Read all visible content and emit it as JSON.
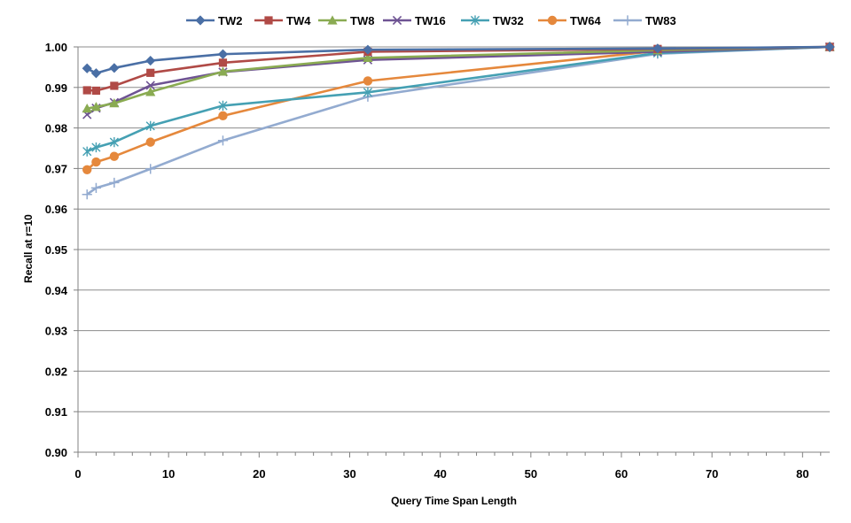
{
  "chart_data": {
    "type": "line",
    "title": "",
    "xlabel": "Query Time Span Length",
    "ylabel": "Recall at r=10",
    "xlim": [
      0,
      83
    ],
    "ylim": [
      0.9,
      1.0
    ],
    "x_ticks": [
      0,
      10,
      20,
      30,
      40,
      50,
      60,
      70,
      80
    ],
    "y_ticks": [
      0.9,
      0.91,
      0.92,
      0.93,
      0.94,
      0.95,
      0.96,
      0.97,
      0.98,
      0.99,
      1.0
    ],
    "y_tick_labels": [
      "0.90",
      "0.91",
      "0.92",
      "0.93",
      "0.94",
      "0.95",
      "0.96",
      "0.97",
      "0.98",
      "0.99",
      "1.00"
    ],
    "grid": "horizontal",
    "legend_position": "top",
    "x": [
      1,
      2,
      4,
      8,
      16,
      32,
      64,
      83
    ],
    "series": [
      {
        "name": "TW2",
        "color": "#4a6fa5",
        "marker": "diamond",
        "values": [
          0.9947,
          0.9935,
          0.9948,
          0.9966,
          0.9982,
          0.9993,
          0.9996,
          1.0
        ]
      },
      {
        "name": "TW4",
        "color": "#b04a46",
        "marker": "square",
        "values": [
          0.9893,
          0.9892,
          0.9904,
          0.9936,
          0.9961,
          0.9988,
          0.9995,
          1.0
        ]
      },
      {
        "name": "TW8",
        "color": "#8aab52",
        "marker": "triangle",
        "values": [
          0.9848,
          0.9852,
          0.9861,
          0.9889,
          0.9939,
          0.9973,
          0.9992,
          1.0
        ]
      },
      {
        "name": "TW16",
        "color": "#6e5393",
        "marker": "x",
        "values": [
          0.9833,
          0.9849,
          0.9863,
          0.9905,
          0.9938,
          0.9968,
          0.9988,
          1.0
        ]
      },
      {
        "name": "TW32",
        "color": "#45a0b3",
        "marker": "star",
        "values": [
          0.9742,
          0.9752,
          0.9765,
          0.9805,
          0.9855,
          0.9888,
          0.9985,
          1.0
        ]
      },
      {
        "name": "TW64",
        "color": "#e5883c",
        "marker": "circle",
        "values": [
          0.9697,
          0.9716,
          0.973,
          0.9765,
          0.983,
          0.9916,
          0.999,
          1.0
        ]
      },
      {
        "name": "TW83",
        "color": "#93abd0",
        "marker": "plus",
        "values": [
          0.9636,
          0.9652,
          0.9665,
          0.9699,
          0.9769,
          0.9877,
          0.9983,
          1.0
        ]
      }
    ]
  }
}
